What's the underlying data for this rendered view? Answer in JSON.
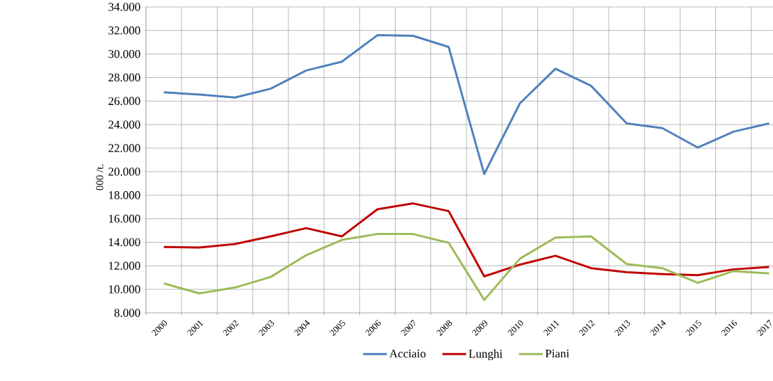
{
  "chart_data": {
    "type": "line",
    "ylabel": "000 /t.",
    "categories": [
      "2000",
      "2001",
      "2002",
      "2003",
      "2004",
      "2005",
      "2006",
      "2007",
      "2008",
      "2009",
      "2010",
      "2011",
      "2012",
      "2013",
      "2014",
      "2015",
      "2016",
      "2017"
    ],
    "series": [
      {
        "name": "Acciaio",
        "color": "#4f81bd",
        "values": [
          26750,
          26550,
          26300,
          27050,
          28600,
          29350,
          31600,
          31550,
          30600,
          19800,
          25800,
          28750,
          27300,
          24100,
          23700,
          22050,
          23400,
          24100
        ]
      },
      {
        "name": "Lunghi",
        "color": "#c00000",
        "values": [
          13600,
          13550,
          13850,
          14500,
          15200,
          14500,
          16800,
          17300,
          16650,
          11100,
          12100,
          12850,
          11800,
          11450,
          11300,
          11200,
          11700,
          11900
        ]
      },
      {
        "name": "Piani",
        "color": "#9bbb59",
        "values": [
          10500,
          9650,
          10150,
          11050,
          12900,
          14200,
          14700,
          14700,
          13950,
          9100,
          12600,
          14400,
          14500,
          12150,
          11800,
          10550,
          11550,
          11350
        ]
      }
    ],
    "ylim": [
      8000,
      34000
    ],
    "yticks": [
      {
        "value": 8000,
        "label": "8.000"
      },
      {
        "value": 10000,
        "label": "10.000"
      },
      {
        "value": 12000,
        "label": "12.000"
      },
      {
        "value": 14000,
        "label": "14.000"
      },
      {
        "value": 16000,
        "label": "16.000"
      },
      {
        "value": 18000,
        "label": "18.000"
      },
      {
        "value": 20000,
        "label": "20.000"
      },
      {
        "value": 22000,
        "label": "22.000"
      },
      {
        "value": 24000,
        "label": "24.000"
      },
      {
        "value": 26000,
        "label": "26.000"
      },
      {
        "value": 28000,
        "label": "28.000"
      },
      {
        "value": 30000,
        "label": "30.000"
      },
      {
        "value": 32000,
        "label": "32.000"
      },
      {
        "value": 34000,
        "label": "34.000"
      }
    ],
    "grid": true,
    "legend": "bottom",
    "marker": "none",
    "line_style": "solid"
  }
}
